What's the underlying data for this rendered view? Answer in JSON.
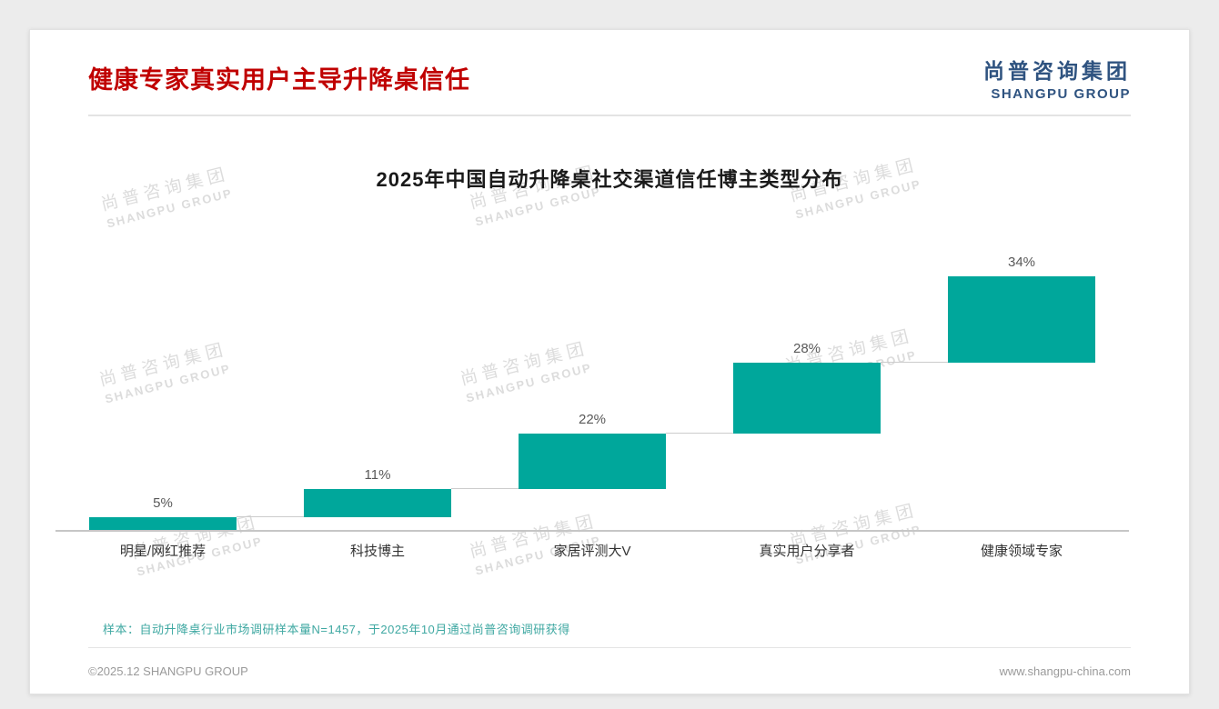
{
  "page": {
    "title": "健康专家真实用户主导升降桌信任",
    "logo": {
      "cn": "尚普咨询集团",
      "en": "SHANGPU GROUP"
    },
    "watermark": {
      "line1": "尚普咨询集团",
      "line2": "SHANGPU GROUP"
    },
    "sample_note": "样本：自动升降桌行业市场调研样本量N=1457，于2025年10月通过尚普咨询调研获得",
    "footer": {
      "left": "©2025.12 SHANGPU GROUP",
      "right": "www.shangpu-china.com"
    }
  },
  "colors": {
    "title_red": "#C00000",
    "logo_blue": "#2F5380",
    "bar_teal": "#00A79B",
    "note_teal": "#3FA8A2"
  },
  "chart_data": {
    "type": "bar",
    "variant": "waterfall",
    "title": "2025年中国自动升降桌社交渠道信任博主类型分布",
    "categories": [
      "明星/网红推荐",
      "科技博主",
      "家居评测大V",
      "真实用户分享者",
      "健康领域专家"
    ],
    "values": [
      5,
      11,
      22,
      28,
      34
    ],
    "value_labels": [
      "5%",
      "11%",
      "22%",
      "28%",
      "34%"
    ],
    "cumulative_totals": [
      5,
      16,
      38,
      66,
      100
    ],
    "unit": "%",
    "ylim": [
      0,
      100
    ],
    "grid": false,
    "legend": false,
    "bar_color": "#00A79B",
    "connector_color": "#CCCCCC"
  }
}
